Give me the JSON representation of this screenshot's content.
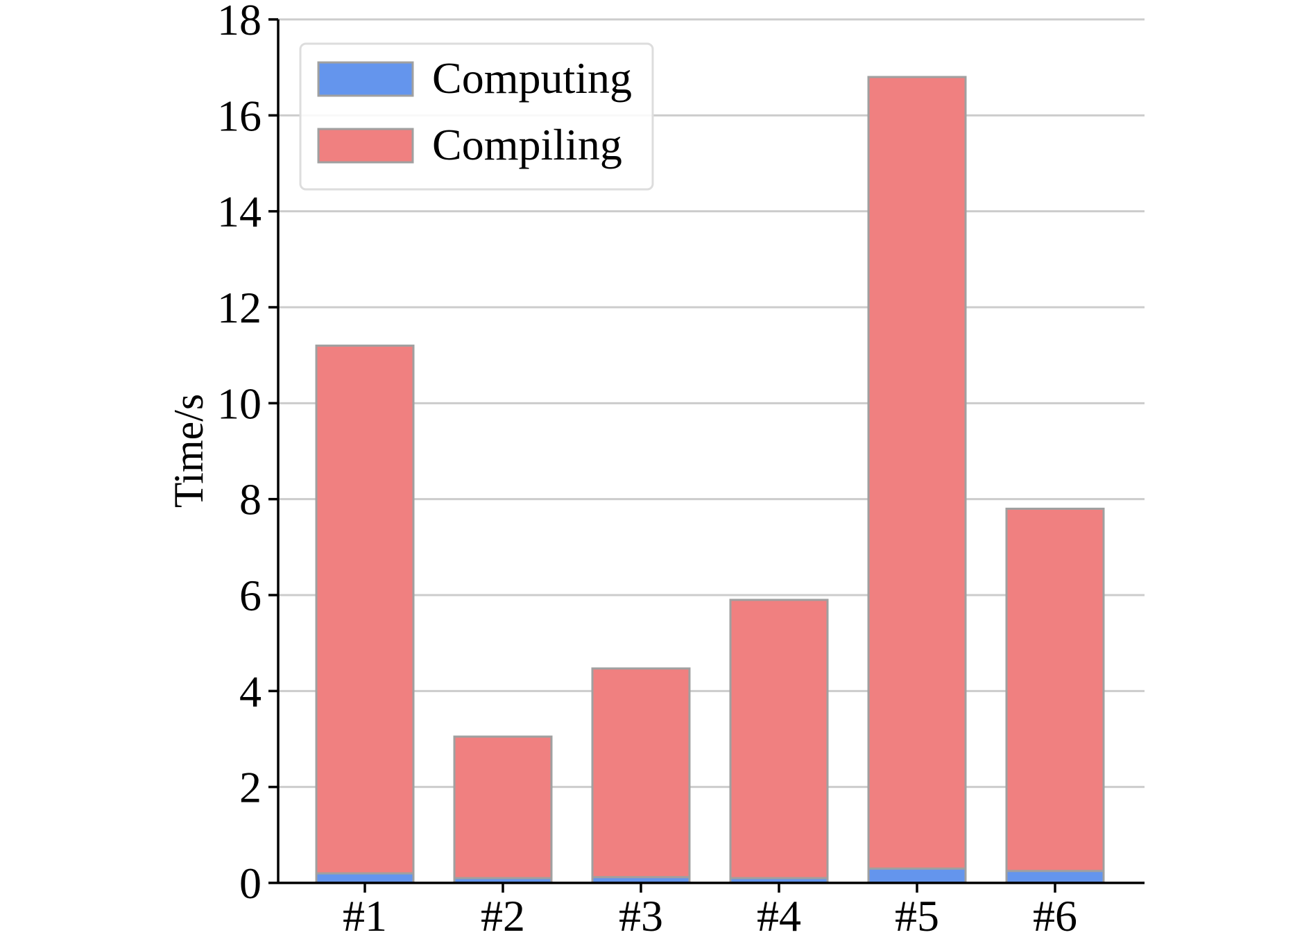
{
  "chart_data": {
    "type": "bar",
    "stacked": true,
    "title": "",
    "xlabel": "",
    "ylabel": "Time/s",
    "categories": [
      "#1",
      "#2",
      "#3",
      "#4",
      "#5",
      "#6"
    ],
    "ylim": [
      0,
      18
    ],
    "yticks": [
      0,
      2,
      4,
      6,
      8,
      10,
      12,
      14,
      16,
      18
    ],
    "ytick_labels": [
      "0",
      "2",
      "4",
      "6",
      "8",
      "10",
      "12",
      "14",
      "16",
      "18"
    ],
    "grid": "y-major",
    "legend_position": "top-left",
    "series": [
      {
        "name": "Computing",
        "color": "#6495ED",
        "values": [
          0.2,
          0.1,
          0.12,
          0.1,
          0.3,
          0.25
        ]
      },
      {
        "name": "Compiling",
        "color": "#F08080",
        "values": [
          11.0,
          2.95,
          4.35,
          5.8,
          16.5,
          7.55
        ]
      }
    ],
    "bar_edge_color": "#a0a0a0",
    "grid_color": "#cccccc",
    "axis_color": "#000000"
  }
}
